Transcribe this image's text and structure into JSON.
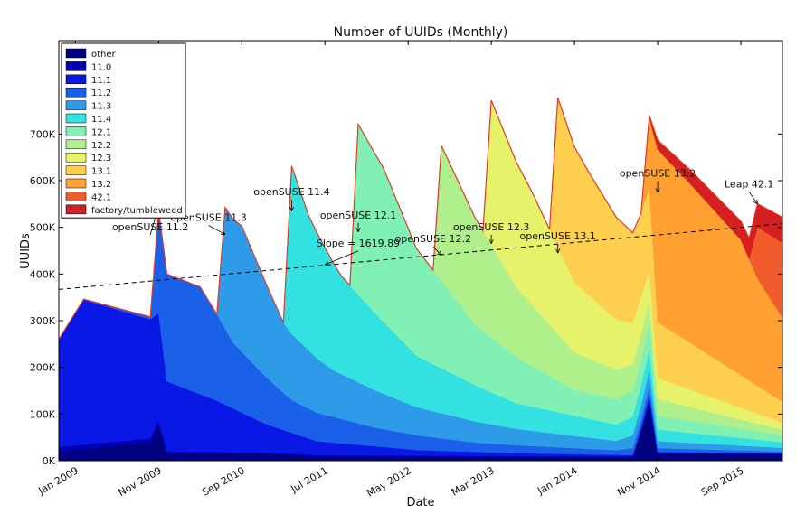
{
  "chart_data": {
    "type": "area",
    "title": "Number of UUIDs (Monthly)",
    "xlabel": "Date",
    "ylabel": "UUIDs",
    "ylim": [
      0,
      900000
    ],
    "x_range": [
      "2008-11",
      "2016-02"
    ],
    "x_ticks": [
      {
        "date": "2009-01",
        "label": "Jan 2009"
      },
      {
        "date": "2009-11",
        "label": "Nov 2009"
      },
      {
        "date": "2010-09",
        "label": "Sep 2010"
      },
      {
        "date": "2011-07",
        "label": "Jul 2011"
      },
      {
        "date": "2012-05",
        "label": "May 2012"
      },
      {
        "date": "2013-03",
        "label": "Mar 2013"
      },
      {
        "date": "2014-01",
        "label": "Jan 2014"
      },
      {
        "date": "2014-11",
        "label": "Nov 2014"
      },
      {
        "date": "2015-09",
        "label": "Sep 2015"
      }
    ],
    "y_ticks": [
      {
        "value": 0,
        "label": "0K"
      },
      {
        "value": 100000,
        "label": "100K"
      },
      {
        "value": 200000,
        "label": "200K"
      },
      {
        "value": 300000,
        "label": "300K"
      },
      {
        "value": 400000,
        "label": "400K"
      },
      {
        "value": 500000,
        "label": "500K"
      },
      {
        "value": 600000,
        "label": "600K"
      },
      {
        "value": 700000,
        "label": "700K"
      }
    ],
    "grid": false,
    "legend_position": "top-left",
    "stacked": true,
    "series": [
      {
        "name": "other",
        "color": "#000080",
        "points": [
          [
            "2008-11",
            20000
          ],
          [
            "2009-10",
            40000
          ],
          [
            "2009-11",
            80000
          ],
          [
            "2009-12",
            15000
          ],
          [
            "2010-12",
            15000
          ],
          [
            "2011-06",
            10000
          ],
          [
            "2014-08",
            8000
          ],
          [
            "2014-10",
            120000
          ],
          [
            "2014-11",
            15000
          ],
          [
            "2016-02",
            15000
          ]
        ]
      },
      {
        "name": "11.0",
        "color": "#0000b8",
        "points": [
          [
            "2008-11",
            10000
          ],
          [
            "2009-10",
            8000
          ],
          [
            "2009-12",
            5000
          ],
          [
            "2010-09",
            3000
          ],
          [
            "2011-06",
            2000
          ],
          [
            "2014-09",
            1000
          ],
          [
            "2014-10",
            12000
          ],
          [
            "2014-11",
            1000
          ],
          [
            "2016-02",
            500
          ]
        ]
      },
      {
        "name": "11.1",
        "color": "#0a18e6",
        "points": [
          [
            "2008-11",
            230000
          ],
          [
            "2009-02",
            310000
          ],
          [
            "2009-10",
            255000
          ],
          [
            "2009-11",
            230000
          ],
          [
            "2009-12",
            150000
          ],
          [
            "2010-06",
            110000
          ],
          [
            "2010-12",
            60000
          ],
          [
            "2011-06",
            30000
          ],
          [
            "2012-06",
            12000
          ],
          [
            "2013-06",
            6000
          ],
          [
            "2014-08",
            3000
          ],
          [
            "2014-10",
            8000
          ],
          [
            "2014-11",
            3000
          ],
          [
            "2016-02",
            1000
          ]
        ]
      },
      {
        "name": "11.2",
        "color": "#1a60e8",
        "points": [
          [
            "2008-11",
            0
          ],
          [
            "2009-10",
            5000
          ],
          [
            "2009-11",
            220000
          ],
          [
            "2009-12",
            230000
          ],
          [
            "2010-04",
            230000
          ],
          [
            "2010-08",
            140000
          ],
          [
            "2011-03",
            70000
          ],
          [
            "2012-01",
            40000
          ],
          [
            "2013-01",
            20000
          ],
          [
            "2014-06",
            10000
          ],
          [
            "2014-10",
            20000
          ],
          [
            "2014-11",
            8000
          ],
          [
            "2016-02",
            3000
          ]
        ]
      },
      {
        "name": "11.3",
        "color": "#2d9be8",
        "points": [
          [
            "2008-11",
            0
          ],
          [
            "2010-06",
            0
          ],
          [
            "2010-07",
            260000
          ],
          [
            "2010-09",
            270000
          ],
          [
            "2011-02",
            150000
          ],
          [
            "2011-08",
            100000
          ],
          [
            "2012-06",
            60000
          ],
          [
            "2013-06",
            35000
          ],
          [
            "2014-06",
            20000
          ],
          [
            "2014-10",
            35000
          ],
          [
            "2014-11",
            15000
          ],
          [
            "2016-02",
            8000
          ]
        ]
      },
      {
        "name": "11.4",
        "color": "#33e2e0",
        "points": [
          [
            "2008-11",
            0
          ],
          [
            "2011-02",
            0
          ],
          [
            "2011-03",
            360000
          ],
          [
            "2011-05",
            290000
          ],
          [
            "2011-09",
            210000
          ],
          [
            "2012-06",
            110000
          ],
          [
            "2013-06",
            55000
          ],
          [
            "2014-06",
            35000
          ],
          [
            "2014-10",
            45000
          ],
          [
            "2014-11",
            25000
          ],
          [
            "2016-02",
            12000
          ]
        ]
      },
      {
        "name": "12.1",
        "color": "#80f0b4",
        "points": [
          [
            "2008-11",
            0
          ],
          [
            "2011-10",
            0
          ],
          [
            "2011-11",
            365000
          ],
          [
            "2012-02",
            330000
          ],
          [
            "2012-06",
            230000
          ],
          [
            "2013-01",
            130000
          ],
          [
            "2014-01",
            55000
          ],
          [
            "2014-10",
            55000
          ],
          [
            "2014-11",
            30000
          ],
          [
            "2016-02",
            15000
          ]
        ]
      },
      {
        "name": "12.2",
        "color": "#b0f08c",
        "points": [
          [
            "2008-11",
            0
          ],
          [
            "2012-08",
            0
          ],
          [
            "2012-09",
            290000
          ],
          [
            "2013-01",
            230000
          ],
          [
            "2013-06",
            150000
          ],
          [
            "2014-01",
            80000
          ],
          [
            "2014-10",
            50000
          ],
          [
            "2014-11",
            35000
          ],
          [
            "2016-02",
            12000
          ]
        ]
      },
      {
        "name": "12.3",
        "color": "#e6f26a",
        "points": [
          [
            "2008-11",
            0
          ],
          [
            "2013-02",
            0
          ],
          [
            "2013-03",
            310000
          ],
          [
            "2013-08",
            240000
          ],
          [
            "2014-01",
            150000
          ],
          [
            "2014-09",
            80000
          ],
          [
            "2014-10",
            60000
          ],
          [
            "2014-11",
            45000
          ],
          [
            "2016-02",
            15000
          ]
        ]
      },
      {
        "name": "13.1",
        "color": "#ffd050",
        "points": [
          [
            "2008-11",
            0
          ],
          [
            "2013-10",
            0
          ],
          [
            "2013-11",
            320000
          ],
          [
            "2014-03",
            260000
          ],
          [
            "2014-09",
            180000
          ],
          [
            "2014-10",
            180000
          ],
          [
            "2014-11",
            120000
          ],
          [
            "2015-03",
            100000
          ],
          [
            "2016-02",
            45000
          ]
        ]
      },
      {
        "name": "13.2",
        "color": "#ffa030",
        "points": [
          [
            "2008-11",
            0
          ],
          [
            "2014-09",
            0
          ],
          [
            "2014-10",
            150000
          ],
          [
            "2014-11",
            370000
          ],
          [
            "2015-03",
            340000
          ],
          [
            "2015-09",
            290000
          ],
          [
            "2015-11",
            230000
          ],
          [
            "2016-02",
            180000
          ]
        ]
      },
      {
        "name": "42.1",
        "color": "#f25c2c",
        "points": [
          [
            "2008-11",
            0
          ],
          [
            "2015-10",
            0
          ],
          [
            "2015-11",
            110000
          ],
          [
            "2016-02",
            160000
          ]
        ]
      },
      {
        "name": "factory/tumbleweed",
        "color": "#d42020",
        "points": [
          [
            "2008-11",
            0
          ],
          [
            "2014-09",
            0
          ],
          [
            "2014-10",
            5000
          ],
          [
            "2014-11",
            20000
          ],
          [
            "2015-03",
            30000
          ],
          [
            "2015-09",
            40000
          ],
          [
            "2015-11",
            50000
          ],
          [
            "2016-02",
            55000
          ]
        ]
      }
    ],
    "trend_line": {
      "start": [
        "2008-11",
        367000
      ],
      "end": [
        "2016-02",
        508000
      ]
    },
    "annotations": [
      {
        "text": "openSUSE 11.2",
        "date": "2009-11",
        "value": 545000,
        "label_date": "2009-10",
        "label_value": 490000
      },
      {
        "text": "openSUSE 11.3",
        "date": "2010-07",
        "value": 485000,
        "label_date": "2010-05",
        "label_value": 510000
      },
      {
        "text": "openSUSE 11.4",
        "date": "2011-03",
        "value": 535000,
        "label_date": "2011-03",
        "label_value": 565000
      },
      {
        "text": "Slope = 1619.89",
        "date": "2011-07",
        "value": 420000,
        "label_date": "2011-11",
        "label_value": 455000
      },
      {
        "text": "openSUSE 12.1",
        "date": "2011-11",
        "value": 490000,
        "label_date": "2011-11",
        "label_value": 515000
      },
      {
        "text": "openSUSE 12.2",
        "date": "2012-09",
        "value": 440000,
        "label_date": "2012-08",
        "label_value": 465000
      },
      {
        "text": "openSUSE 12.3",
        "date": "2013-03",
        "value": 465000,
        "label_date": "2013-03",
        "label_value": 490000
      },
      {
        "text": "openSUSE 13.1",
        "date": "2013-11",
        "value": 445000,
        "label_date": "2013-11",
        "label_value": 470000
      },
      {
        "text": "openSUSE 13.2",
        "date": "2014-11",
        "value": 575000,
        "label_date": "2014-11",
        "label_value": 605000
      },
      {
        "text": "Leap 42.1",
        "date": "2015-11",
        "value": 550000,
        "label_date": "2015-10",
        "label_value": 582000
      }
    ]
  }
}
